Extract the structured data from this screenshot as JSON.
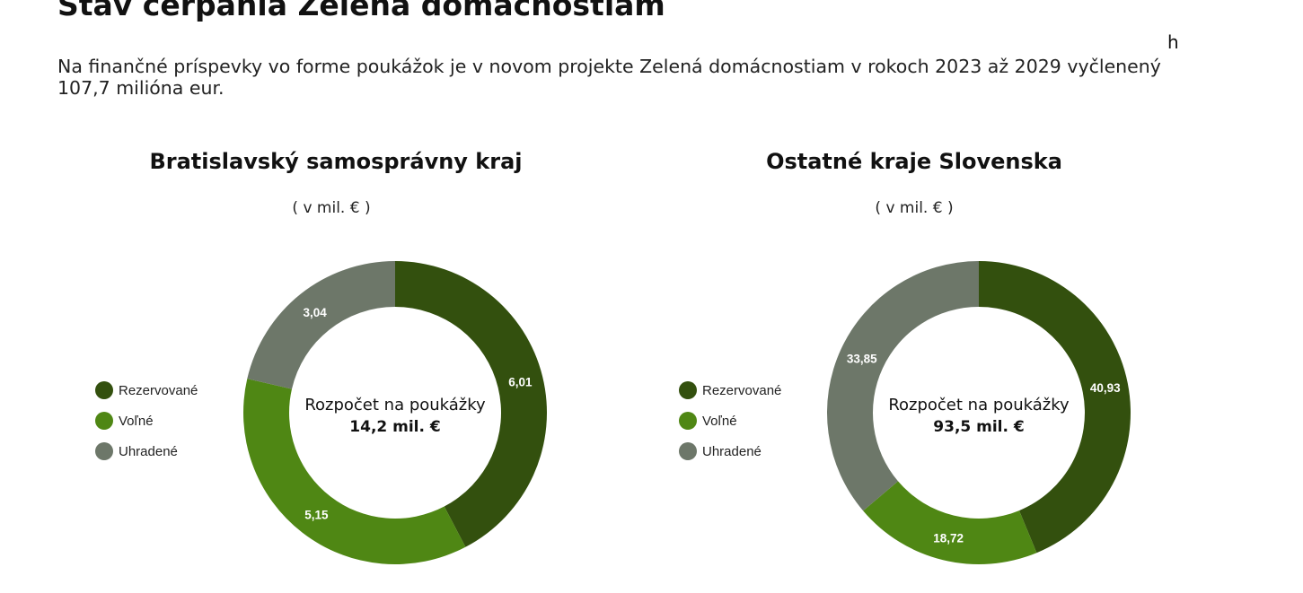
{
  "header": {
    "title": "Stav čerpania Zelená domácnostiam",
    "intro": "Na finančné príspevky vo forme poukážok je v novom projekte Zelená domácnostiam v rokoch 2023 až 2029 vyčlenený 107,7 milióna eur.",
    "stray_char": "h"
  },
  "colors": {
    "rezervovane": "#33500e",
    "volne": "#4f8714",
    "uhradene": "#6d7769"
  },
  "chart_data": [
    {
      "type": "pie",
      "title": "Bratislavský samosprávny kraj",
      "subtitle": "( v mil. € )",
      "center_label": "Rozpočet na poukážky",
      "center_value": "14,2 mil. €",
      "legend_position": "left",
      "slices": [
        {
          "name": "Rezervované",
          "value": 6.01,
          "label": "6,01"
        },
        {
          "name": "Voľné",
          "value": 5.15,
          "label": "5,15"
        },
        {
          "name": "Uhradené",
          "value": 3.04,
          "label": "3,04"
        }
      ]
    },
    {
      "type": "pie",
      "title": "Ostatné kraje Slovenska",
      "subtitle": "( v mil. € )",
      "center_label": "Rozpočet na poukážky",
      "center_value": "93,5 mil. €",
      "legend_position": "left",
      "slices": [
        {
          "name": "Rezervované",
          "value": 40.93,
          "label": "40,93"
        },
        {
          "name": "Voľné",
          "value": 18.72,
          "label": "18,72"
        },
        {
          "name": "Uhradené",
          "value": 33.85,
          "label": "33,85"
        }
      ]
    }
  ]
}
